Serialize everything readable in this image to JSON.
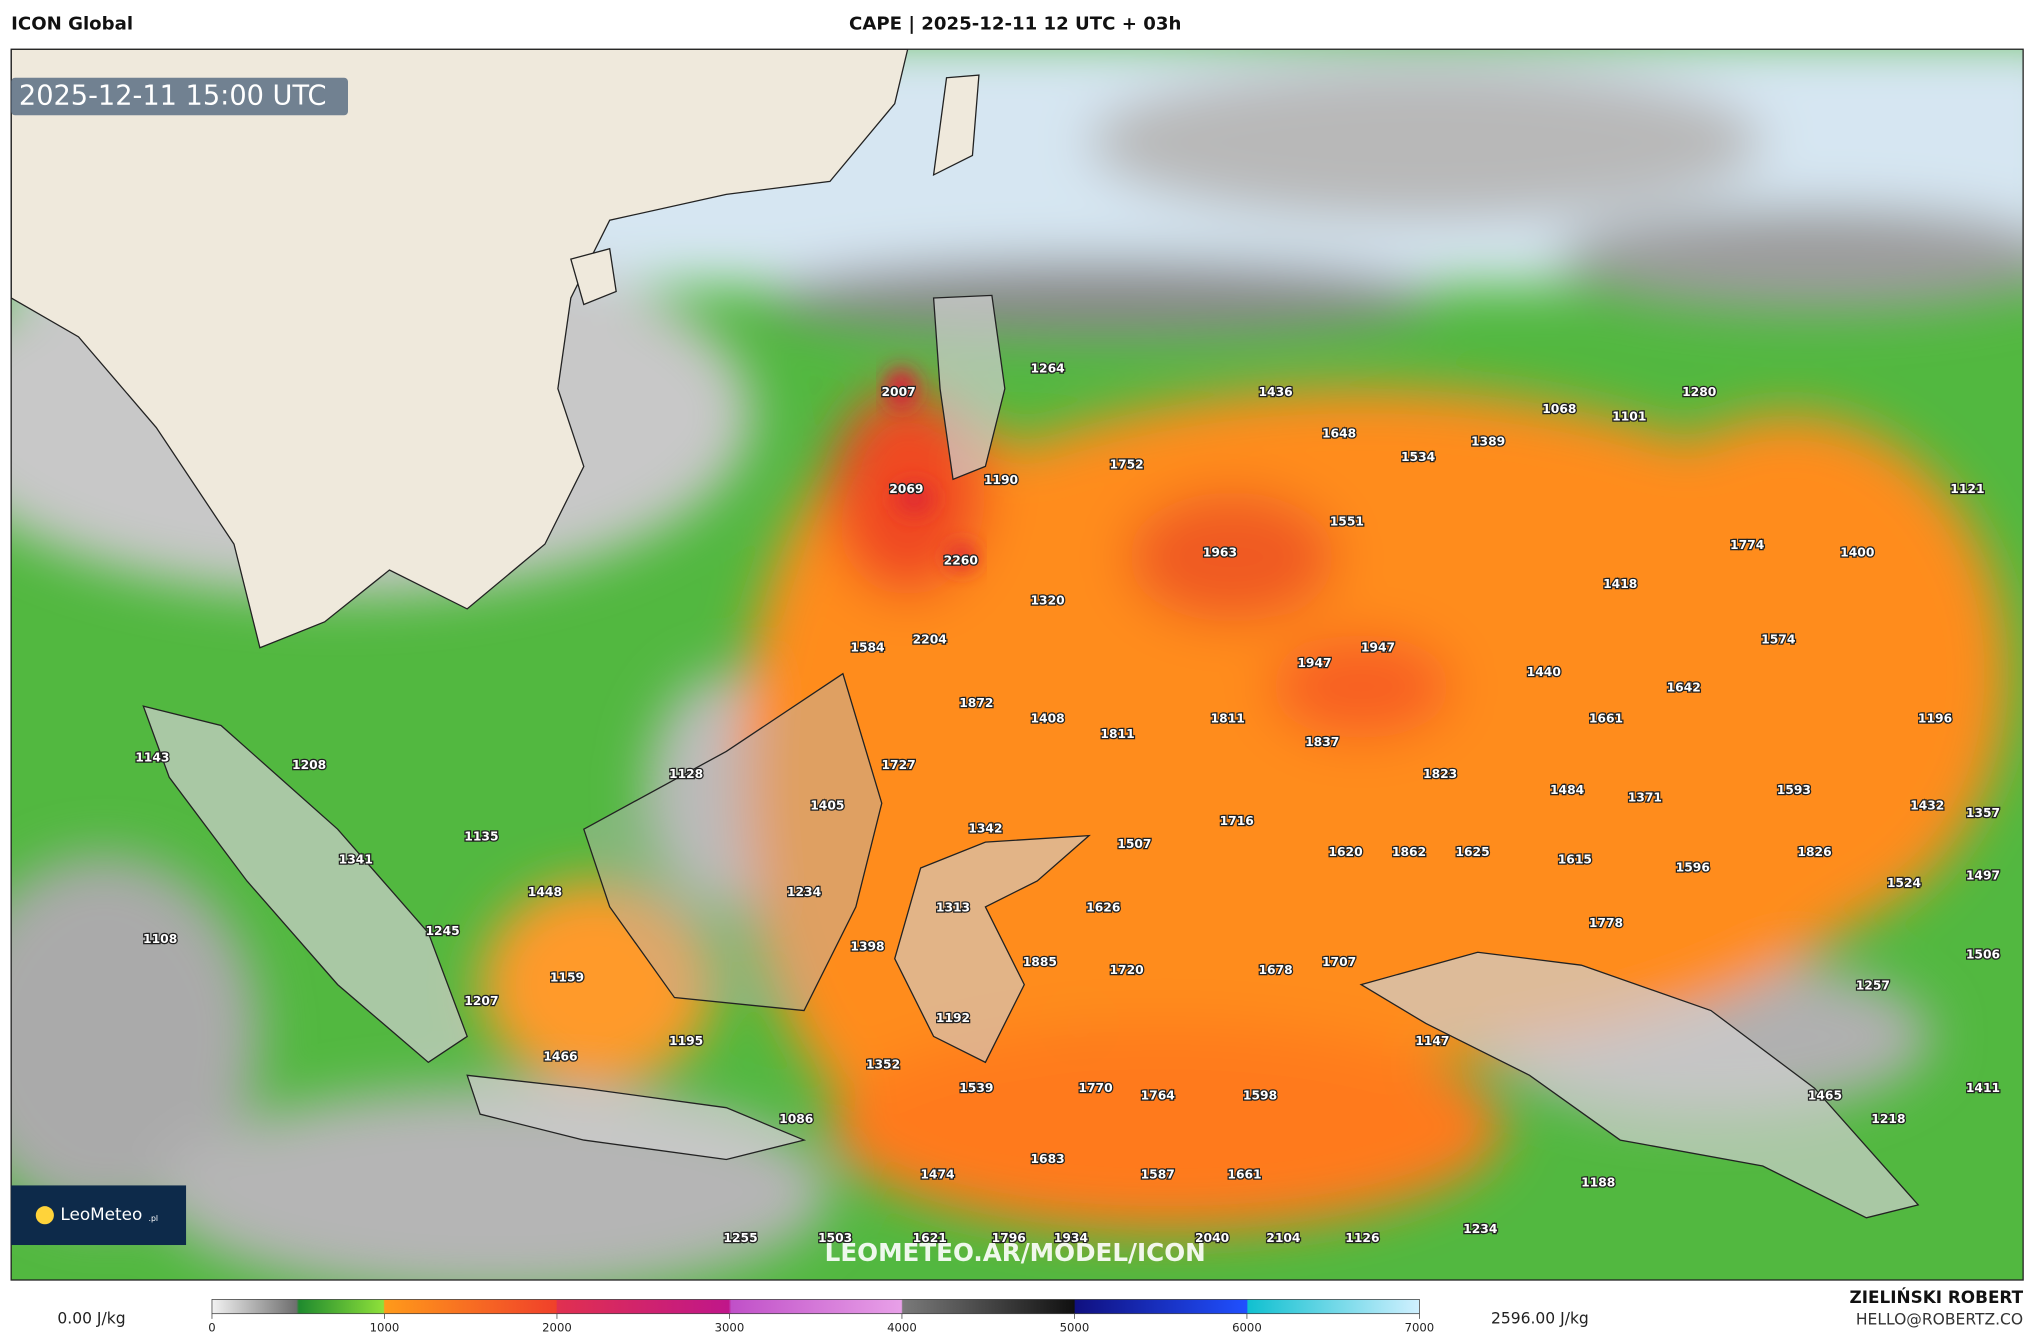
{
  "header": {
    "model": "ICON Global",
    "title": "CAPE | 2025-12-11 12 UTC + 03h",
    "valid_time": "2025-12-11 15:00 UTC"
  },
  "logo": {
    "name": "LeoMeteo",
    "suffix": ".pl"
  },
  "watermark": "LEOMETEO.AR/MODEL/ICON",
  "map_labels": [
    1264,
    1436,
    1280,
    2007,
    1068,
    1101,
    1648,
    1389,
    1534,
    1752,
    2069,
    1190,
    1121,
    1551,
    1774,
    1963,
    1400,
    2260,
    1418,
    1320,
    1584,
    2204,
    1947,
    1574,
    1947,
    1440,
    1642,
    1872,
    1408,
    1811,
    1661,
    1196,
    1811,
    1837,
    1143,
    1208,
    1727,
    1128,
    1823,
    1484,
    1593,
    1371,
    1405,
    1432,
    1357,
    1716,
    1342,
    1135,
    1507,
    1620,
    1862,
    1625,
    1615,
    1826,
    1341,
    1596,
    1497,
    1524,
    1448,
    1234,
    1626,
    1313,
    1778,
    1245,
    1108,
    1398,
    1506,
    1885,
    1720,
    1678,
    1707,
    1159,
    1257,
    1207,
    1192,
    1195,
    1147,
    1466,
    1352,
    1411,
    1539,
    1770,
    1764,
    1598,
    1465,
    1218,
    1086,
    1683,
    1474,
    1587,
    1661,
    1188,
    1255,
    1503,
    1621,
    1796,
    1934,
    2040,
    2104,
    1126,
    1234
  ],
  "colorbar": {
    "min_label": "0.00 J/kg",
    "max_label": "2596.00 J/kg",
    "ticks": [
      0,
      1000,
      2000,
      3000,
      4000,
      5000,
      6000,
      7000
    ]
  },
  "credits": {
    "author": "ZIELIŃSKI ROBERT",
    "contact": "HELLO@ROBERTZ.CO"
  }
}
